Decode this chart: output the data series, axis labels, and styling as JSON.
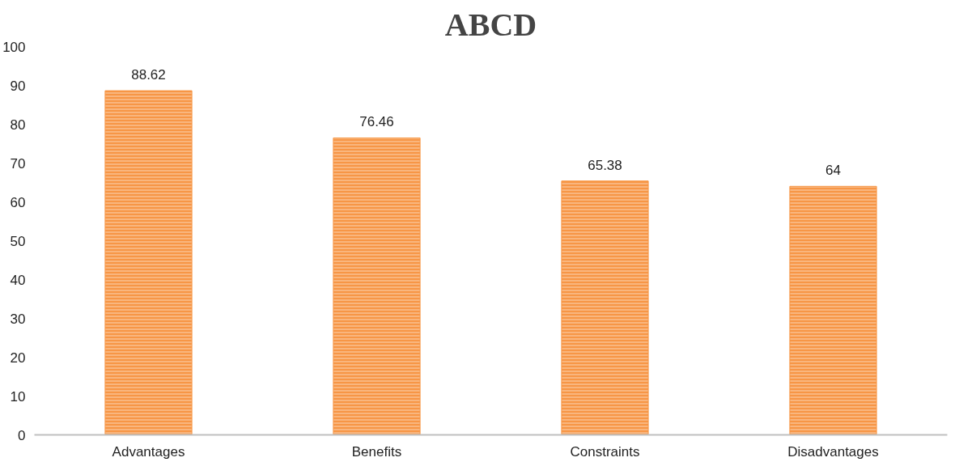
{
  "chart_data": {
    "type": "bar",
    "title": "ABCD",
    "categories": [
      "Advantages",
      "Benefits",
      "Constraints",
      "Disadvantages"
    ],
    "values": [
      88.62,
      76.46,
      65.38,
      64
    ],
    "color": "#f79646",
    "ylim": [
      0,
      100
    ],
    "yticks": [
      0,
      10,
      20,
      30,
      40,
      50,
      60,
      70,
      80,
      90,
      100
    ],
    "data_labels": true,
    "grid": false
  }
}
